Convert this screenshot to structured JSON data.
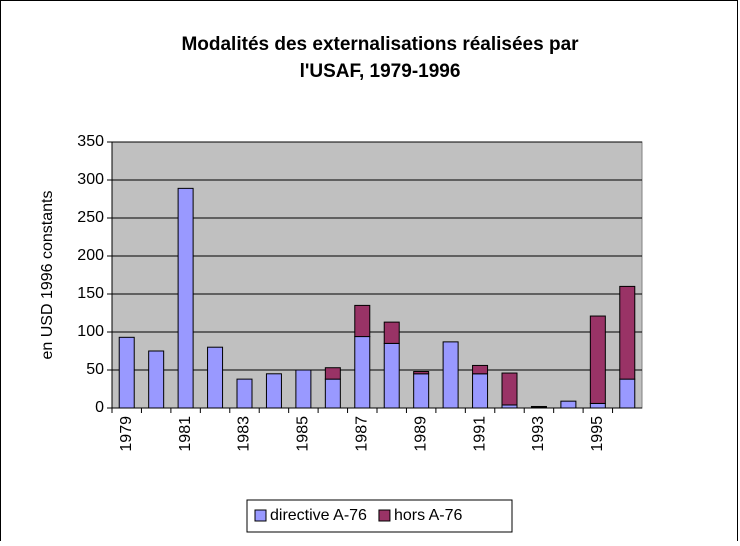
{
  "chart_data": {
    "type": "stacked_bar",
    "title": [
      "Modalités des externalisations réalisées par",
      "l'USAF, 1979-1996"
    ],
    "y_label": "en USD 1996 constants",
    "categories": [
      "1979",
      null,
      "1981",
      null,
      "1983",
      null,
      "1985",
      null,
      "1987",
      null,
      "1989",
      null,
      "1991",
      null,
      "1993",
      null,
      "1995",
      null
    ],
    "series": [
      {
        "name": "directive A-76",
        "color": "#9999ff",
        "values": [
          93,
          75,
          289,
          80,
          38,
          45,
          50,
          38,
          94,
          85,
          45,
          87,
          45,
          4,
          1,
          9,
          6,
          38
        ]
      },
      {
        "name": "hors A-76",
        "color": "#993366",
        "values": [
          0,
          0,
          0,
          0,
          0,
          0,
          0,
          15,
          41,
          28,
          3,
          0,
          11,
          42,
          1,
          0,
          115,
          122
        ]
      }
    ],
    "ylim": [
      0,
      350
    ],
    "yticks": [
      0,
      50,
      100,
      150,
      200,
      250,
      300,
      350
    ],
    "grid": true,
    "legend": "bottom"
  }
}
